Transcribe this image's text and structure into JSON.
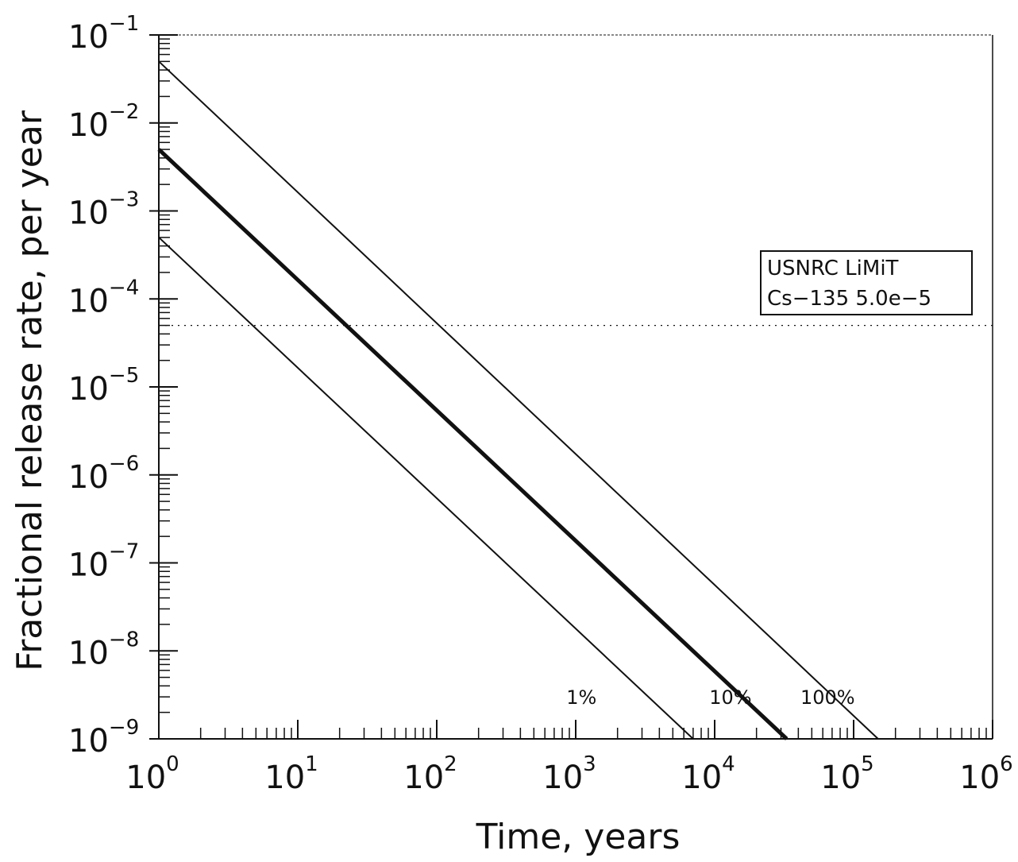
{
  "chart_data": {
    "type": "line",
    "title": "",
    "xlabel": "Time, years",
    "ylabel": "Fractional release rate, per year",
    "xscale": "log",
    "yscale": "log",
    "xlim": [
      1,
      1000000
    ],
    "ylim": [
      1e-09,
      0.1
    ],
    "grid": false,
    "x_ticks": [
      {
        "value": 1,
        "base": "10",
        "exp": "0"
      },
      {
        "value": 10,
        "base": "10",
        "exp": "1"
      },
      {
        "value": 100,
        "base": "10",
        "exp": "2"
      },
      {
        "value": 1000,
        "base": "10",
        "exp": "3"
      },
      {
        "value": 10000,
        "base": "10",
        "exp": "4"
      },
      {
        "value": 100000,
        "base": "10",
        "exp": "5"
      },
      {
        "value": 1000000,
        "base": "10",
        "exp": "6"
      }
    ],
    "y_ticks": [
      {
        "value": 1e-09,
        "base": "10",
        "exp": "−9"
      },
      {
        "value": 1e-08,
        "base": "10",
        "exp": "−8"
      },
      {
        "value": 1e-07,
        "base": "10",
        "exp": "−7"
      },
      {
        "value": 1e-06,
        "base": "10",
        "exp": "−6"
      },
      {
        "value": 1e-05,
        "base": "10",
        "exp": "−5"
      },
      {
        "value": 0.0001,
        "base": "10",
        "exp": "−4"
      },
      {
        "value": 0.001,
        "base": "10",
        "exp": "−3"
      },
      {
        "value": 0.01,
        "base": "10",
        "exp": "−2"
      },
      {
        "value": 0.1,
        "base": "10",
        "exp": "−1"
      }
    ],
    "series": [
      {
        "name": "1%",
        "x": [
          1,
          7000
        ],
        "y": [
          0.0005,
          1e-09
        ],
        "line_width": "thin",
        "label_at": [
          1100,
          2.5e-09
        ]
      },
      {
        "name": "10%",
        "x": [
          1,
          33000
        ],
        "y": [
          0.005,
          1e-09
        ],
        "line_width": "thick",
        "label_at": [
          13000,
          2.5e-09
        ]
      },
      {
        "name": "100%",
        "x": [
          1,
          150000
        ],
        "y": [
          0.05,
          1e-09
        ],
        "line_width": "thin",
        "label_at": [
          65000,
          2.5e-09
        ]
      }
    ],
    "reference_line": {
      "y": 5e-05,
      "style": "dotted",
      "annotation": [
        "USNRC LiMiT",
        "Cs−135 5.0e−5"
      ]
    }
  },
  "colors": {
    "line": "#111111",
    "background": "#ffffff"
  }
}
